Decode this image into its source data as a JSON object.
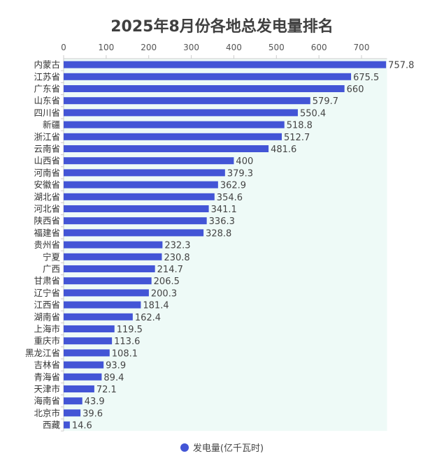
{
  "chart_data": {
    "type": "bar",
    "orientation": "horizontal",
    "title": "2025年8月份各地总发电量排名",
    "categories": [
      "内蒙古",
      "江苏省",
      "广东省",
      "山东省",
      "四川省",
      "新疆",
      "浙江省",
      "云南省",
      "山西省",
      "河南省",
      "安徽省",
      "湖北省",
      "河北省",
      "陕西省",
      "福建省",
      "贵州省",
      "宁夏",
      "广西",
      "甘肃省",
      "辽宁省",
      "江西省",
      "湖南省",
      "上海市",
      "重庆市",
      "黑龙江省",
      "吉林省",
      "青海省",
      "天津市",
      "海南省",
      "北京市",
      "西藏"
    ],
    "series": [
      {
        "name": "发电量(亿千瓦时)",
        "values": [
          757.8,
          675.5,
          660,
          579.7,
          550.4,
          518.8,
          512.7,
          481.6,
          400,
          379.3,
          362.9,
          354.6,
          341.1,
          336.3,
          328.8,
          232.3,
          230.8,
          214.7,
          206.5,
          200.3,
          181.4,
          162.4,
          119.5,
          113.6,
          108.1,
          93.9,
          89.4,
          72.1,
          43.9,
          39.6,
          14.6
        ]
      }
    ],
    "xlim": [
      0,
      760
    ],
    "xticks": [
      0,
      100,
      200,
      300,
      400,
      500,
      600,
      700
    ],
    "axis_position": "top",
    "grid": false,
    "legend_position": "bottom",
    "bar_color": "#4355d6",
    "plot_background": "#eefaf7"
  }
}
